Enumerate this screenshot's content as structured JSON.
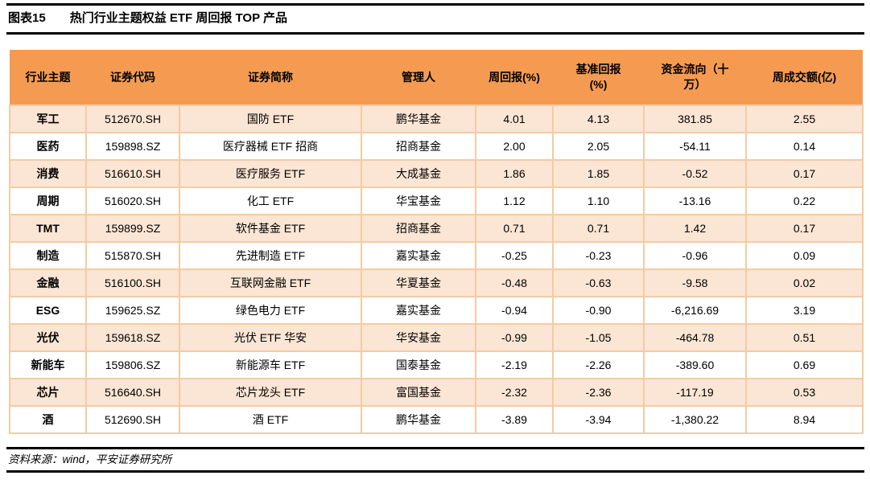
{
  "title": {
    "label": "图表15",
    "text": "热门行业主题权益 ETF 周回报 TOP 产品"
  },
  "table": {
    "columns": [
      "行业主题",
      "证券代码",
      "证券简称",
      "管理人",
      "周回报(%)",
      "基准回报\n(%)",
      "资金流向（十\n万）",
      "周成交额(亿)"
    ],
    "rows": [
      [
        "军工",
        "512670.SH",
        "国防 ETF",
        "鹏华基金",
        "4.01",
        "4.13",
        "381.85",
        "2.55"
      ],
      [
        "医药",
        "159898.SZ",
        "医疗器械 ETF 招商",
        "招商基金",
        "2.00",
        "2.05",
        "-54.11",
        "0.14"
      ],
      [
        "消费",
        "516610.SH",
        "医疗服务 ETF",
        "大成基金",
        "1.86",
        "1.85",
        "-0.52",
        "0.17"
      ],
      [
        "周期",
        "516020.SH",
        "化工 ETF",
        "华宝基金",
        "1.12",
        "1.10",
        "-13.16",
        "0.22"
      ],
      [
        "TMT",
        "159899.SZ",
        "软件基金 ETF",
        "招商基金",
        "0.71",
        "0.71",
        "1.42",
        "0.17"
      ],
      [
        "制造",
        "515870.SH",
        "先进制造 ETF",
        "嘉实基金",
        "-0.25",
        "-0.23",
        "-0.96",
        "0.09"
      ],
      [
        "金融",
        "516100.SH",
        "互联网金融 ETF",
        "华夏基金",
        "-0.48",
        "-0.63",
        "-9.58",
        "0.02"
      ],
      [
        "ESG",
        "159625.SZ",
        "绿色电力 ETF",
        "嘉实基金",
        "-0.94",
        "-0.90",
        "-6,216.69",
        "3.19"
      ],
      [
        "光伏",
        "159618.SZ",
        "光伏 ETF 华安",
        "华安基金",
        "-0.99",
        "-1.05",
        "-464.78",
        "0.51"
      ],
      [
        "新能车",
        "159806.SZ",
        "新能源车 ETF",
        "国泰基金",
        "-2.19",
        "-2.26",
        "-389.60",
        "0.69"
      ],
      [
        "芯片",
        "516640.SH",
        "芯片龙头 ETF",
        "富国基金",
        "-2.32",
        "-2.36",
        "-117.19",
        "0.53"
      ],
      [
        "酒",
        "512690.SH",
        "酒 ETF",
        "鹏华基金",
        "-3.89",
        "-3.94",
        "-1,380.22",
        "8.94"
      ]
    ]
  },
  "footer": {
    "source": "资料来源：wind，平安证券研究所"
  },
  "colors": {
    "header_bg": "#F59B51",
    "row_alt_bg": "#FBE5D4",
    "grid": "#F4CBA3",
    "rule": "#000000"
  }
}
